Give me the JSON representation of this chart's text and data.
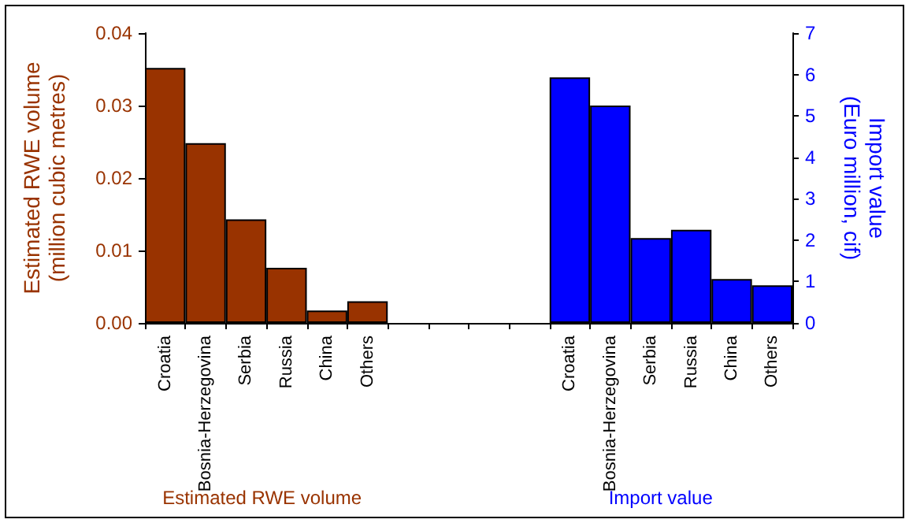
{
  "chart_data": {
    "type": "bar",
    "categories": [
      "Croatia",
      "Bosnia-Herzegovina",
      "Serbia",
      "Russia",
      "China",
      "Others",
      null,
      null,
      null,
      null,
      "Croatia",
      "Bosnia-Herzegovina",
      "Serbia",
      "Russia",
      "China",
      "Others"
    ],
    "series": [
      {
        "name": "Estimated RWE volume",
        "color": "#993300",
        "values": [
          0.0352,
          0.0248,
          0.0143,
          0.0076,
          0.0017,
          0.003,
          null,
          null,
          null,
          null,
          null,
          null,
          null,
          null,
          null,
          null
        ]
      },
      {
        "name": "Import value",
        "color": "#0000ff",
        "axis": "y2",
        "values": [
          null,
          null,
          null,
          null,
          null,
          null,
          null,
          null,
          null,
          null,
          5.93,
          5.25,
          2.05,
          2.25,
          1.06,
          0.91
        ]
      }
    ],
    "ylabel": "Estimated RWE volume\n(million cubic metres)",
    "y2label": "Import value\n(Euro million, cif)",
    "ylim": [
      0,
      0.04
    ],
    "yticks": [
      {
        "value": 0,
        "label": "0.00"
      },
      {
        "value": 0.01,
        "label": "0.01"
      },
      {
        "value": 0.02,
        "label": "0.02"
      },
      {
        "value": 0.03,
        "label": "0.03"
      },
      {
        "value": 0.04,
        "label": "0.04"
      }
    ],
    "y2lim": [
      0,
      7
    ],
    "y2ticks": [
      0,
      1,
      2,
      3,
      4,
      5,
      6,
      7
    ],
    "grid": false,
    "legend": "bottom"
  }
}
